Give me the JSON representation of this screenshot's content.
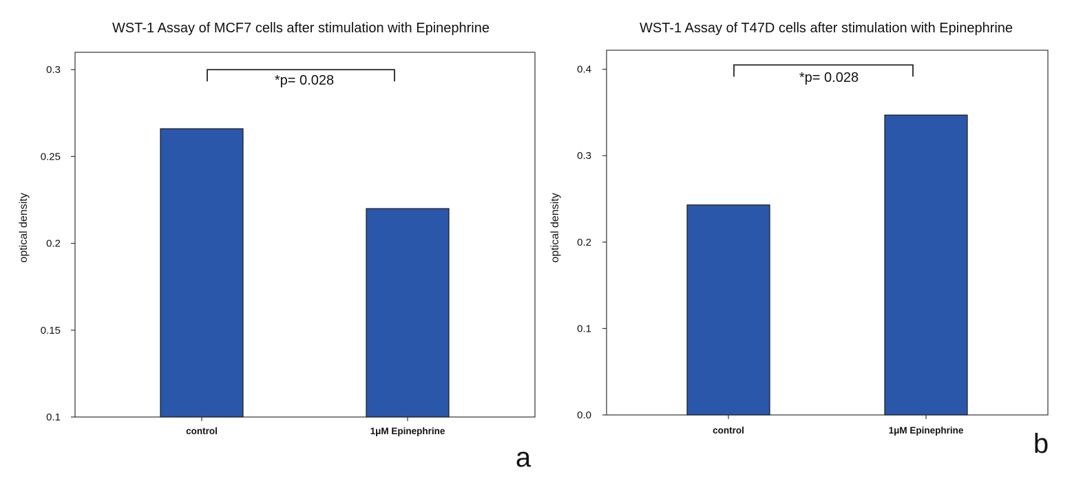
{
  "chart_data": [
    {
      "type": "bar",
      "title": "WST-1 Assay of MCF7 cells after stimulation with Epinephrine",
      "xlabel": "",
      "ylabel": "optical density",
      "categories": [
        "control",
        "1μM Epinephrine"
      ],
      "values": [
        0.266,
        0.22
      ],
      "ylim": [
        0.1,
        0.31
      ],
      "yticks": [
        0.1,
        0.15,
        0.2,
        0.25,
        0.3
      ],
      "ytick_labels": [
        "0.1",
        "0.15",
        "0.2",
        "0.25",
        "0.3"
      ],
      "annotation": "*p= 0.028",
      "bracket_y": 0.3,
      "panel_label": "a",
      "bar_color": "#2A57AA",
      "grid": false
    },
    {
      "type": "bar",
      "title": "WST-1 Assay of T47D cells after stimulation with Epinephrine",
      "xlabel": "",
      "ylabel": "optical density",
      "categories": [
        "control",
        "1μM Epinephrine"
      ],
      "values": [
        0.243,
        0.347
      ],
      "ylim": [
        0.0,
        0.422
      ],
      "yticks": [
        0.0,
        0.1,
        0.2,
        0.3,
        0.4
      ],
      "ytick_labels": [
        "0.0",
        "0.1",
        "0.2",
        "0.3",
        "0.4"
      ],
      "annotation": "*p= 0.028",
      "bracket_y": 0.405,
      "panel_label": "b",
      "bar_color": "#2A57AA",
      "grid": false
    }
  ]
}
